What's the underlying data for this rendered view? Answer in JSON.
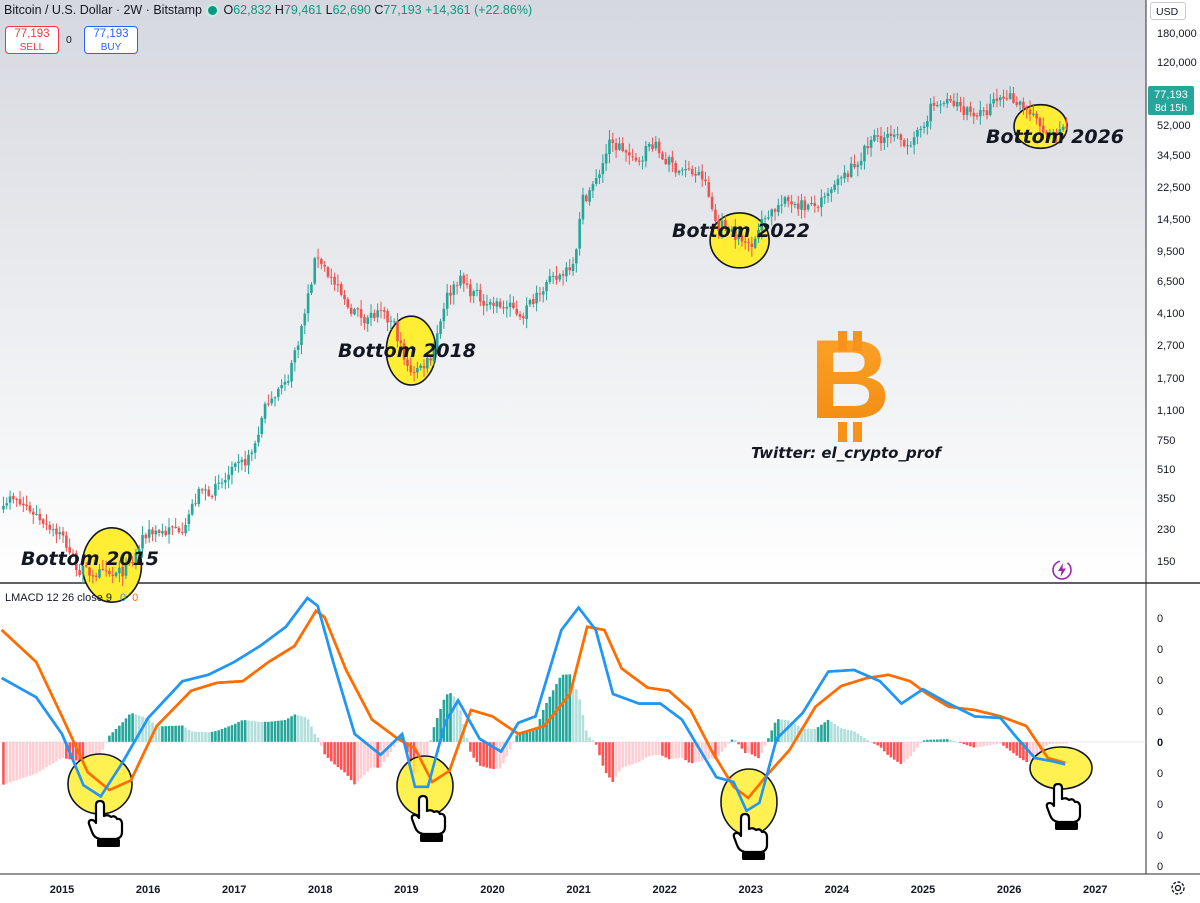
{
  "header": {
    "symbol": "Bitcoin / U.S. Dollar · 2W · Bitstamp",
    "o_label": "O",
    "o_value": "62,832",
    "h_label": "H",
    "h_value": "79,461",
    "l_label": "L",
    "l_value": "62,690",
    "c_label": "C",
    "c_value": "77,193",
    "change": "+14,361 (+22.86%)"
  },
  "trade": {
    "sell_price": "77,193",
    "sell_label": "SELL",
    "spread": "0",
    "buy_price": "77,193",
    "buy_label": "BUY"
  },
  "currency": "USD",
  "price_axis": [
    "180,000",
    "120,000",
    "52,000",
    "34,500",
    "22,500",
    "14,500",
    "9,500",
    "6,500",
    "4,100",
    "2,700",
    "1,700",
    "1,100",
    "750",
    "510",
    "350",
    "230",
    "150"
  ],
  "last_price_tag": {
    "price": "77,193",
    "countdown": "8d 15h"
  },
  "indicator": {
    "title": "LMACD 12 26 close 9",
    "v1": "0",
    "v2": "0"
  },
  "indicator_axis": [
    "0",
    "0",
    "0",
    "0",
    "0",
    "0",
    "0",
    "0",
    "0"
  ],
  "time_axis": [
    "2015",
    "2016",
    "2017",
    "2018",
    "2019",
    "2020",
    "2021",
    "2022",
    "2023",
    "2024",
    "2025",
    "2026",
    "2027"
  ],
  "annotations": [
    "Bottom 2015",
    "Bottom 2018",
    "Bottom 2022",
    "Bottom 2026"
  ],
  "watermark": {
    "symbol": "B",
    "text": "Twitter: el_crypto_prof"
  },
  "colors": {
    "up": "#26a69a",
    "down": "#ef5350",
    "macd": "#2196f3",
    "signal": "#ff6d00",
    "highlight": "#ffee33",
    "bitcoin": "#f7931a"
  },
  "icons": {
    "lightning": "lightning-icon",
    "settings": "gear-icon",
    "hand": "pointing-hand-icon"
  },
  "chart_data": [
    {
      "type": "candlestick",
      "title": "Bitcoin / U.S. Dollar · 2W · Bitstamp",
      "y_scale": "log",
      "ylim": [
        100,
        200000
      ],
      "xlim": [
        2014.3,
        2027.5
      ],
      "series": [
        {
          "x": [
            2014.4,
            2014.6,
            2014.8,
            2015.0,
            2015.2,
            2015.4,
            2015.6,
            2015.8,
            2016.0,
            2016.2,
            2016.4,
            2016.6,
            2016.8,
            2017.0,
            2017.2,
            2017.4,
            2017.6,
            2017.8,
            2017.96,
            2018.1,
            2018.3,
            2018.5,
            2018.7,
            2018.87,
            2019.0,
            2019.15,
            2019.3,
            2019.45,
            2019.6,
            2019.8,
            2020.0,
            2020.2,
            2020.35,
            2020.55,
            2020.75,
            2020.95,
            2021.05,
            2021.2,
            2021.35,
            2021.5,
            2021.65,
            2021.85,
            2022.0,
            2022.15,
            2022.3,
            2022.45,
            2022.6,
            2022.75,
            2022.9,
            2023.0,
            2023.2,
            2023.45,
            2023.7,
            2023.85,
            2024.0,
            2024.2,
            2024.45,
            2024.7,
            2024.9,
            2025.1,
            2025.3,
            2025.5,
            2025.7,
            2025.85,
            2026.0,
            2026.15,
            2026.3,
            2026.45,
            2026.6,
            2026.7
          ],
          "y": [
            620,
            560,
            470,
            390,
            250,
            240,
            230,
            270,
            420,
            410,
            440,
            680,
            710,
            900,
            1100,
            2300,
            2700,
            6000,
            14500,
            11000,
            7500,
            6400,
            6600,
            5700,
            3300,
            3300,
            4000,
            8000,
            10500,
            8500,
            7500,
            7200,
            6600,
            9300,
            10500,
            13500,
            29000,
            36000,
            58000,
            56500,
            45000,
            60000,
            48000,
            43000,
            41000,
            38000,
            21000,
            20500,
            16500,
            16600,
            24500,
            28500,
            26000,
            28000,
            35000,
            44000,
            65000,
            62000,
            60000,
            95000,
            100000,
            91000,
            84000,
            103000,
            110000,
            98000,
            80000,
            64000,
            66000,
            77193
          ]
        }
      ]
    },
    {
      "type": "line",
      "title": "LMACD 12 26 close 9",
      "ylim": [
        -1,
        1
      ],
      "series": [
        {
          "x": [
            2014.3,
            2014.7,
            2015.0,
            2015.25,
            2015.45,
            2015.7,
            2016.0,
            2016.4,
            2016.7,
            2017.0,
            2017.3,
            2017.6,
            2017.85,
            2017.97,
            2018.15,
            2018.4,
            2018.7,
            2018.95,
            2019.1,
            2019.25,
            2019.45,
            2019.6,
            2019.85,
            2020.1,
            2020.3,
            2020.5,
            2020.8,
            2021.0,
            2021.2,
            2021.4,
            2021.7,
            2021.95,
            2022.2,
            2022.4,
            2022.6,
            2022.8,
            2022.95,
            2023.1,
            2023.3,
            2023.6,
            2023.9,
            2024.2,
            2024.5,
            2024.75,
            2025.0,
            2025.3,
            2025.6,
            2025.9,
            2026.1,
            2026.3,
            2026.5,
            2026.65
          ],
          "values": [
            0.4,
            0.28,
            0.05,
            -0.27,
            -0.34,
            -0.13,
            0.15,
            0.38,
            0.42,
            0.5,
            0.6,
            0.72,
            0.9,
            0.85,
            0.5,
            0.05,
            -0.08,
            0.05,
            -0.28,
            -0.28,
            0.12,
            0.26,
            0.02,
            -0.06,
            0.12,
            0.16,
            0.7,
            0.84,
            0.7,
            0.3,
            0.24,
            0.24,
            0.14,
            -0.04,
            -0.22,
            -0.25,
            -0.43,
            -0.38,
            0.02,
            0.18,
            0.44,
            0.45,
            0.38,
            0.24,
            0.33,
            0.24,
            0.16,
            0.15,
            0.02,
            -0.1,
            -0.12,
            -0.14
          ]
        },
        {
          "x": [
            2014.3,
            2014.7,
            2015.0,
            2015.3,
            2015.55,
            2015.8,
            2016.1,
            2016.5,
            2016.8,
            2017.1,
            2017.4,
            2017.7,
            2017.95,
            2018.05,
            2018.3,
            2018.6,
            2018.9,
            2019.1,
            2019.3,
            2019.5,
            2019.75,
            2020.0,
            2020.3,
            2020.6,
            2020.9,
            2021.1,
            2021.3,
            2021.5,
            2021.8,
            2022.05,
            2022.3,
            2022.55,
            2022.8,
            2022.97,
            2023.2,
            2023.45,
            2023.75,
            2024.05,
            2024.35,
            2024.6,
            2024.85,
            2025.05,
            2025.3,
            2025.6,
            2025.9,
            2026.2,
            2026.45,
            2026.65
          ],
          "values": [
            0.7,
            0.5,
            0.16,
            -0.19,
            -0.3,
            -0.24,
            0.1,
            0.32,
            0.37,
            0.38,
            0.5,
            0.6,
            0.82,
            0.78,
            0.45,
            0.14,
            0.02,
            -0.04,
            -0.25,
            -0.18,
            0.2,
            0.16,
            0.05,
            0.1,
            0.3,
            0.72,
            0.7,
            0.46,
            0.34,
            0.32,
            0.2,
            -0.06,
            -0.28,
            -0.35,
            -0.2,
            -0.05,
            0.22,
            0.35,
            0.4,
            0.42,
            0.38,
            0.3,
            0.22,
            0.2,
            0.16,
            0.1,
            -0.1,
            -0.13
          ]
        }
      ]
    }
  ]
}
